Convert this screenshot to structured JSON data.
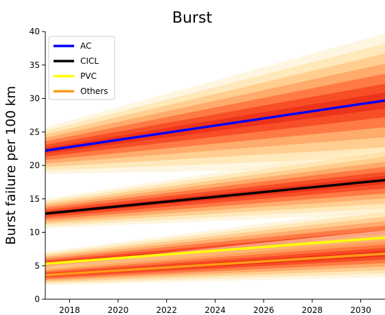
{
  "chart_data": {
    "type": "line",
    "title": "Burst",
    "xlabel": "",
    "ylabel": "Burst failure per 100 km",
    "xlim": [
      2017,
      2031
    ],
    "ylim": [
      0,
      40
    ],
    "xticks": [
      2018,
      2020,
      2022,
      2024,
      2026,
      2028,
      2030
    ],
    "yticks": [
      0,
      5,
      10,
      15,
      20,
      25,
      30,
      35,
      40
    ],
    "grid": false,
    "legend_position": "top-left",
    "uncertainty_bands": "red-yellow gradient shading around each series",
    "series": [
      {
        "name": "AC",
        "color": "#0000ff",
        "x": [
          2017,
          2031
        ],
        "y": [
          22.2,
          29.7
        ],
        "band_halfwidth": [
          3.5,
          10.0
        ]
      },
      {
        "name": "CICL",
        "color": "#000000",
        "x": [
          2017,
          2031
        ],
        "y": [
          12.8,
          17.8
        ],
        "band_halfwidth": [
          2.2,
          5.0
        ]
      },
      {
        "name": "PVC",
        "color": "#ffff00",
        "x": [
          2017,
          2031
        ],
        "y": [
          5.3,
          9.2
        ],
        "band_halfwidth": [
          1.8,
          4.5
        ]
      },
      {
        "name": "Others",
        "color": "#ff9a1a",
        "x": [
          2017,
          2031
        ],
        "y": [
          3.6,
          6.8
        ],
        "band_halfwidth": [
          1.5,
          3.5
        ]
      }
    ]
  }
}
